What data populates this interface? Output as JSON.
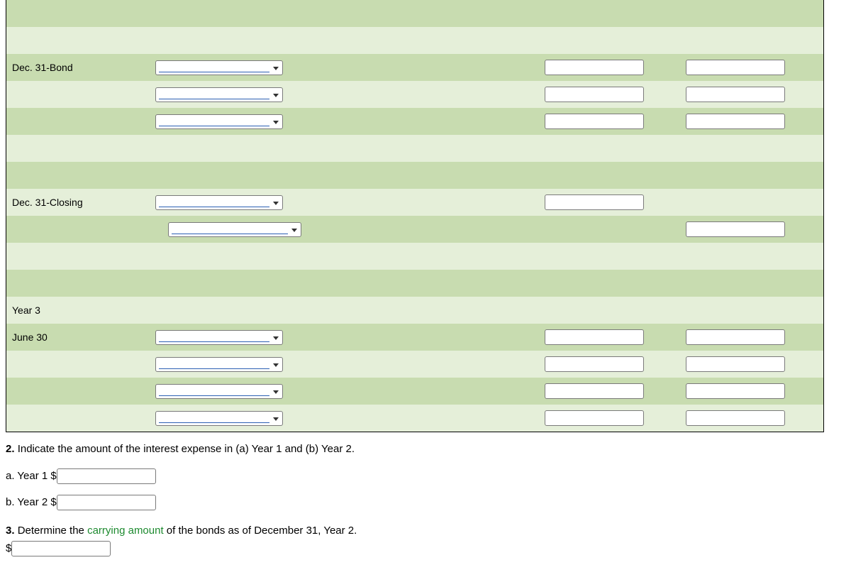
{
  "table": {
    "rows": [
      {
        "shade": "dark",
        "label": "",
        "dd": "none",
        "box4": false,
        "box5": false
      },
      {
        "shade": "light",
        "label": "",
        "dd": "none",
        "box4": false,
        "box5": false
      },
      {
        "shade": "dark",
        "label": "Dec. 31-Bond",
        "dd": "narrow",
        "box4": true,
        "box5": true
      },
      {
        "shade": "light",
        "label": "",
        "dd": "narrow",
        "box4": true,
        "box5": true
      },
      {
        "shade": "dark",
        "label": "",
        "dd": "narrow",
        "box4": true,
        "box5": true
      },
      {
        "shade": "light",
        "label": "",
        "dd": "none",
        "box4": false,
        "box5": false
      },
      {
        "shade": "dark",
        "label": "",
        "dd": "none",
        "box4": false,
        "box5": false
      },
      {
        "shade": "light",
        "label": "Dec. 31-Closing",
        "dd": "narrow",
        "box4": true,
        "box5": false
      },
      {
        "shade": "dark",
        "label": "",
        "dd": "wide",
        "box4": false,
        "box5": true
      },
      {
        "shade": "light",
        "label": "",
        "dd": "none",
        "box4": false,
        "box5": false
      },
      {
        "shade": "dark",
        "label": "",
        "dd": "none",
        "box4": false,
        "box5": false
      },
      {
        "shade": "light",
        "label": "Year 3",
        "dd": "none",
        "box4": false,
        "box5": false
      },
      {
        "shade": "dark",
        "label": "June 30",
        "dd": "narrow",
        "box4": true,
        "box5": true
      },
      {
        "shade": "light",
        "label": "",
        "dd": "narrow",
        "box4": true,
        "box5": true
      },
      {
        "shade": "dark",
        "label": "",
        "dd": "narrow",
        "box4": true,
        "box5": true
      },
      {
        "shade": "light",
        "label": "",
        "dd": "narrow",
        "box4": true,
        "box5": true
      }
    ]
  },
  "questions": {
    "q2num": "2.",
    "q2text": "Indicate the amount of the interest expense in (a) Year 1 and (b) Year 2.",
    "aLabel": "a.  Year 1",
    "bLabel": "b.  Year 2",
    "dollar": "$",
    "q3num": "3.",
    "q3before": "Determine the ",
    "q3link": "carrying amount",
    "q3after": " of the bonds as of December 31, Year 2."
  }
}
